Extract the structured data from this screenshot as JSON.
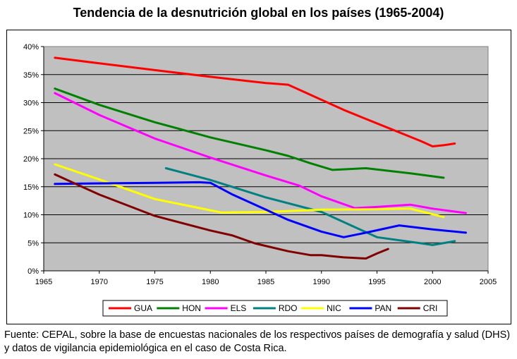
{
  "chart_data": {
    "type": "line",
    "title": "Tendencia de la desnutrición global en los países (1965-2004)",
    "xlabel": "",
    "ylabel": "",
    "xlim": [
      1965,
      2005
    ],
    "ylim": [
      0,
      40
    ],
    "x_ticks": [
      "1965",
      "1970",
      "1975",
      "1980",
      "1985",
      "1990",
      "1995",
      "2000",
      "2005"
    ],
    "y_ticks": [
      "0%",
      "5%",
      "10%",
      "15%",
      "20%",
      "25%",
      "30%",
      "35%",
      "40%"
    ],
    "plot_background": "#c0c0c0",
    "grid": true,
    "legend_position": "bottom",
    "series": [
      {
        "name": "GUA",
        "color": "#ff0000",
        "x": [
          1966,
          1970,
          1975,
          1980,
          1985,
          1987,
          1988,
          1990,
          1992,
          1994,
          1996,
          1998,
          1999,
          2000,
          2001,
          2002
        ],
        "y": [
          38.0,
          37.0,
          35.8,
          34.6,
          33.5,
          33.2,
          32.3,
          30.5,
          28.7,
          27.1,
          25.5,
          23.9,
          23.1,
          22.2,
          22.4,
          22.7
        ]
      },
      {
        "name": "HON",
        "color": "#008000",
        "x": [
          1966,
          1970,
          1975,
          1980,
          1985,
          1987,
          1989,
          1991,
          1994,
          1998,
          2001
        ],
        "y": [
          32.5,
          29.6,
          26.5,
          23.8,
          21.5,
          20.5,
          19.2,
          18.0,
          18.3,
          17.4,
          16.6
        ]
      },
      {
        "name": "ELS",
        "color": "#ff00ff",
        "x": [
          1966,
          1970,
          1975,
          1980,
          1985,
          1988,
          1990,
          1993,
          1995,
          1998,
          2000,
          2003
        ],
        "y": [
          31.7,
          27.8,
          23.6,
          20.2,
          17.0,
          15.2,
          13.3,
          11.2,
          11.4,
          11.8,
          11.1,
          10.3
        ]
      },
      {
        "name": "RDO",
        "color": "#008080",
        "x": [
          1976,
          1980,
          1985,
          1990,
          1993,
          1995,
          1999,
          2000,
          2002
        ],
        "y": [
          18.3,
          16.2,
          13.1,
          10.5,
          7.8,
          6.0,
          4.9,
          4.6,
          5.3
        ]
      },
      {
        "name": "NIC",
        "color": "#ffff00",
        "x": [
          1966,
          1970,
          1975,
          1980,
          1981,
          1985,
          1990,
          1995,
          1998,
          2001
        ],
        "y": [
          19.0,
          16.3,
          12.8,
          10.8,
          10.4,
          10.5,
          10.9,
          11.0,
          11.1,
          9.6
        ]
      },
      {
        "name": "PAN",
        "color": "#0000ff",
        "x": [
          1966,
          1970,
          1975,
          1979,
          1980,
          1982,
          1985,
          1987,
          1990,
          1992,
          1994,
          1997,
          2000,
          2003
        ],
        "y": [
          15.5,
          15.6,
          15.7,
          15.8,
          15.7,
          13.6,
          10.9,
          9.1,
          7.0,
          6.0,
          6.8,
          8.1,
          7.4,
          6.8
        ]
      },
      {
        "name": "CRI",
        "color": "#800000",
        "x": [
          1966,
          1970,
          1975,
          1980,
          1982,
          1984,
          1987,
          1989,
          1990,
          1992,
          1994,
          1995,
          1996
        ],
        "y": [
          17.2,
          13.6,
          9.8,
          7.2,
          6.3,
          4.9,
          3.5,
          2.8,
          2.8,
          2.4,
          2.2,
          3.1,
          3.9
        ]
      }
    ]
  },
  "caption": "Fuente: CEPAL, sobre la base de encuestas nacionales de los respectivos países de demografía y salud (DHS) y datos de vigilancia epidemiológica en el caso de Costa Rica."
}
